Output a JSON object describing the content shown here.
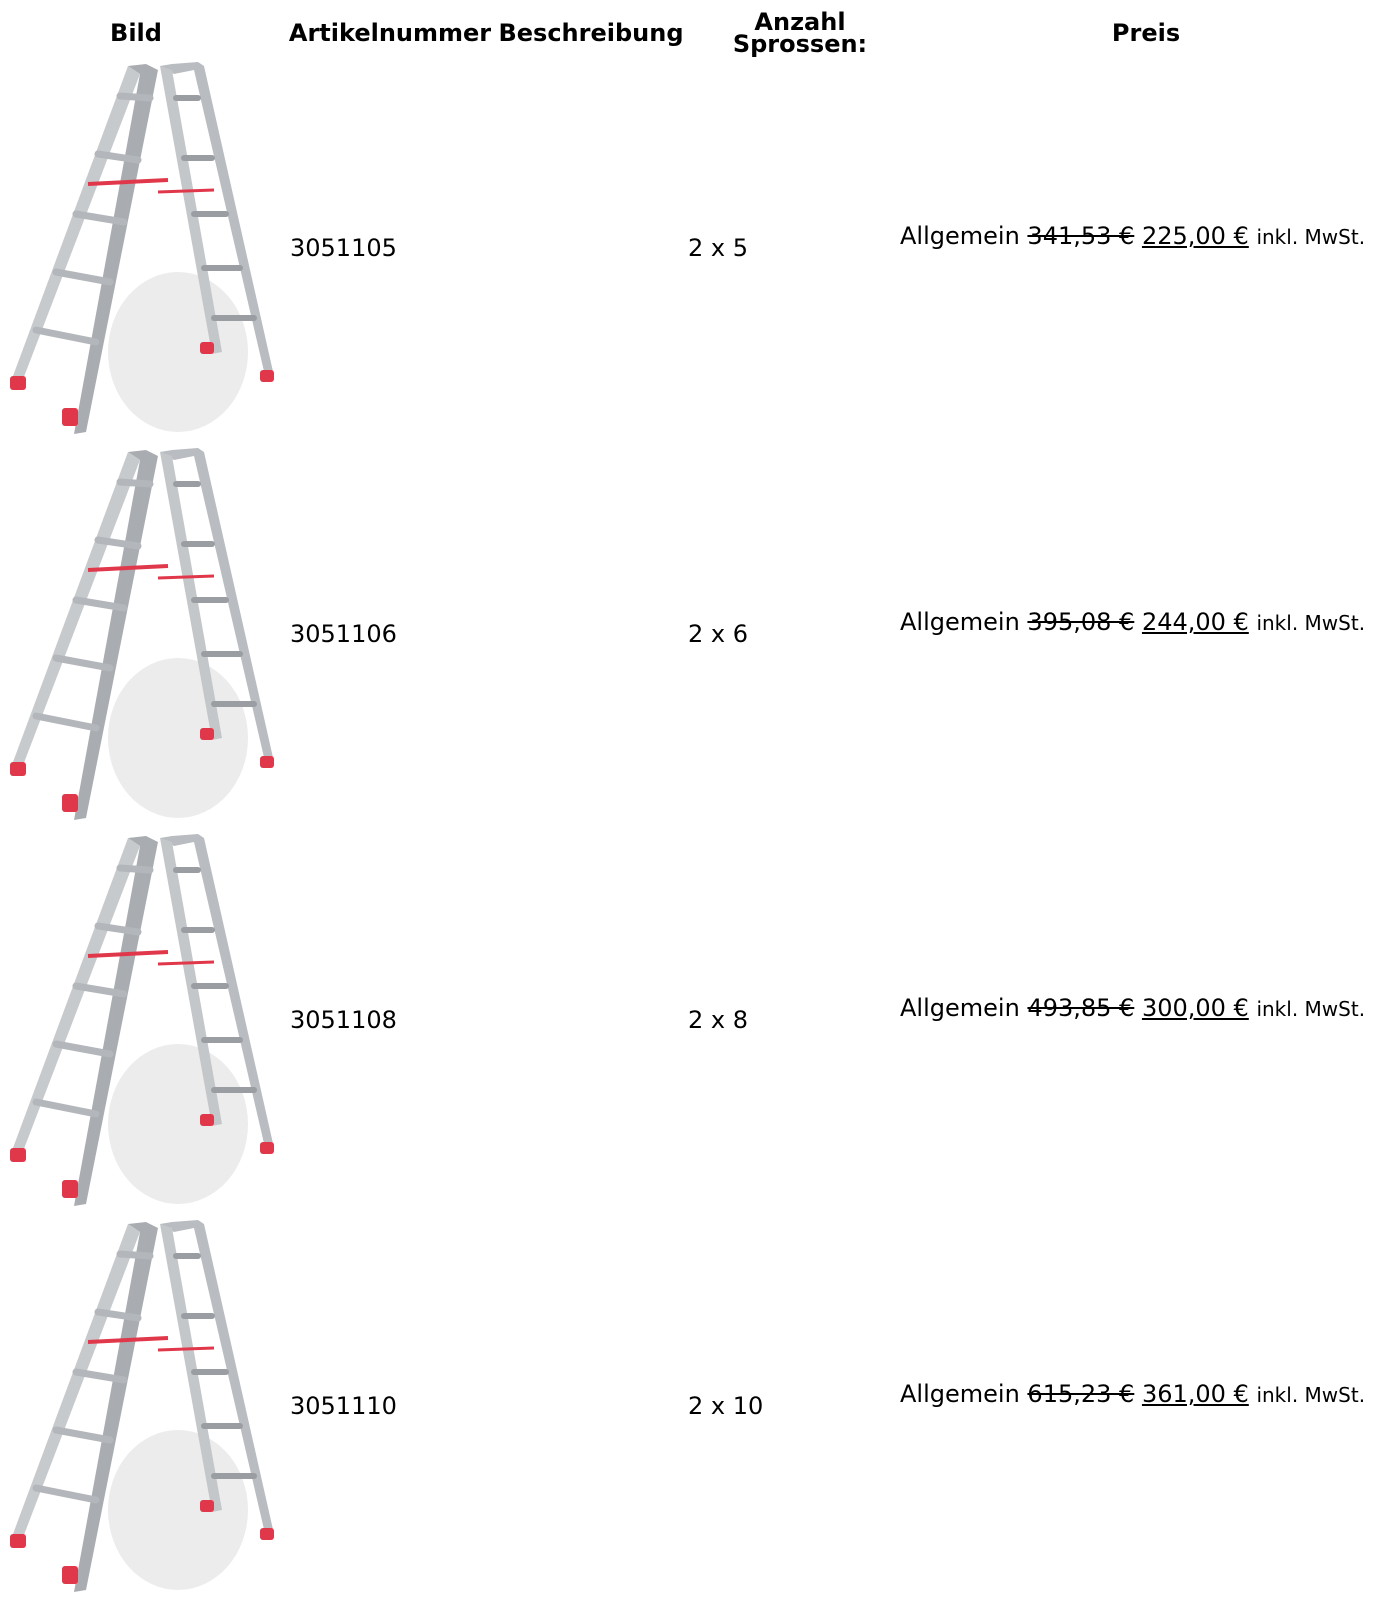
{
  "table": {
    "headers": {
      "bild": "Bild",
      "artikelnummer": "Artikelnummer",
      "beschreibung": "Beschreibung",
      "sprossen_line1": "Anzahl",
      "sprossen_line2": "Sprossen:",
      "preis": "Preis"
    },
    "rows": [
      {
        "artikelnummer": "3051105",
        "sprossen": "2 x 5",
        "price_group": "Allgemein",
        "old_price": "341,53 €",
        "new_price": "225,00 €",
        "vat": "inkl. MwSt."
      },
      {
        "artikelnummer": "3051106",
        "sprossen": "2 x 6",
        "price_group": "Allgemein",
        "old_price": "395,08 €",
        "new_price": "244,00 €",
        "vat": "inkl. MwSt."
      },
      {
        "artikelnummer": "3051108",
        "sprossen": "2 x 8",
        "price_group": "Allgemein",
        "old_price": "493,85 €",
        "new_price": "300,00 €",
        "vat": "inkl. MwSt."
      },
      {
        "artikelnummer": "3051110",
        "sprossen": "2 x 10",
        "price_group": "Allgemein",
        "old_price": "615,23 €",
        "new_price": "361,00 €",
        "vat": "inkl. MwSt."
      }
    ]
  },
  "colors": {
    "ladder_frame": "#b9bcc0",
    "ladder_shade": "#8e9296",
    "ladder_accent": "#e0384a"
  },
  "icons": {
    "product_image": "step-ladder-image"
  }
}
